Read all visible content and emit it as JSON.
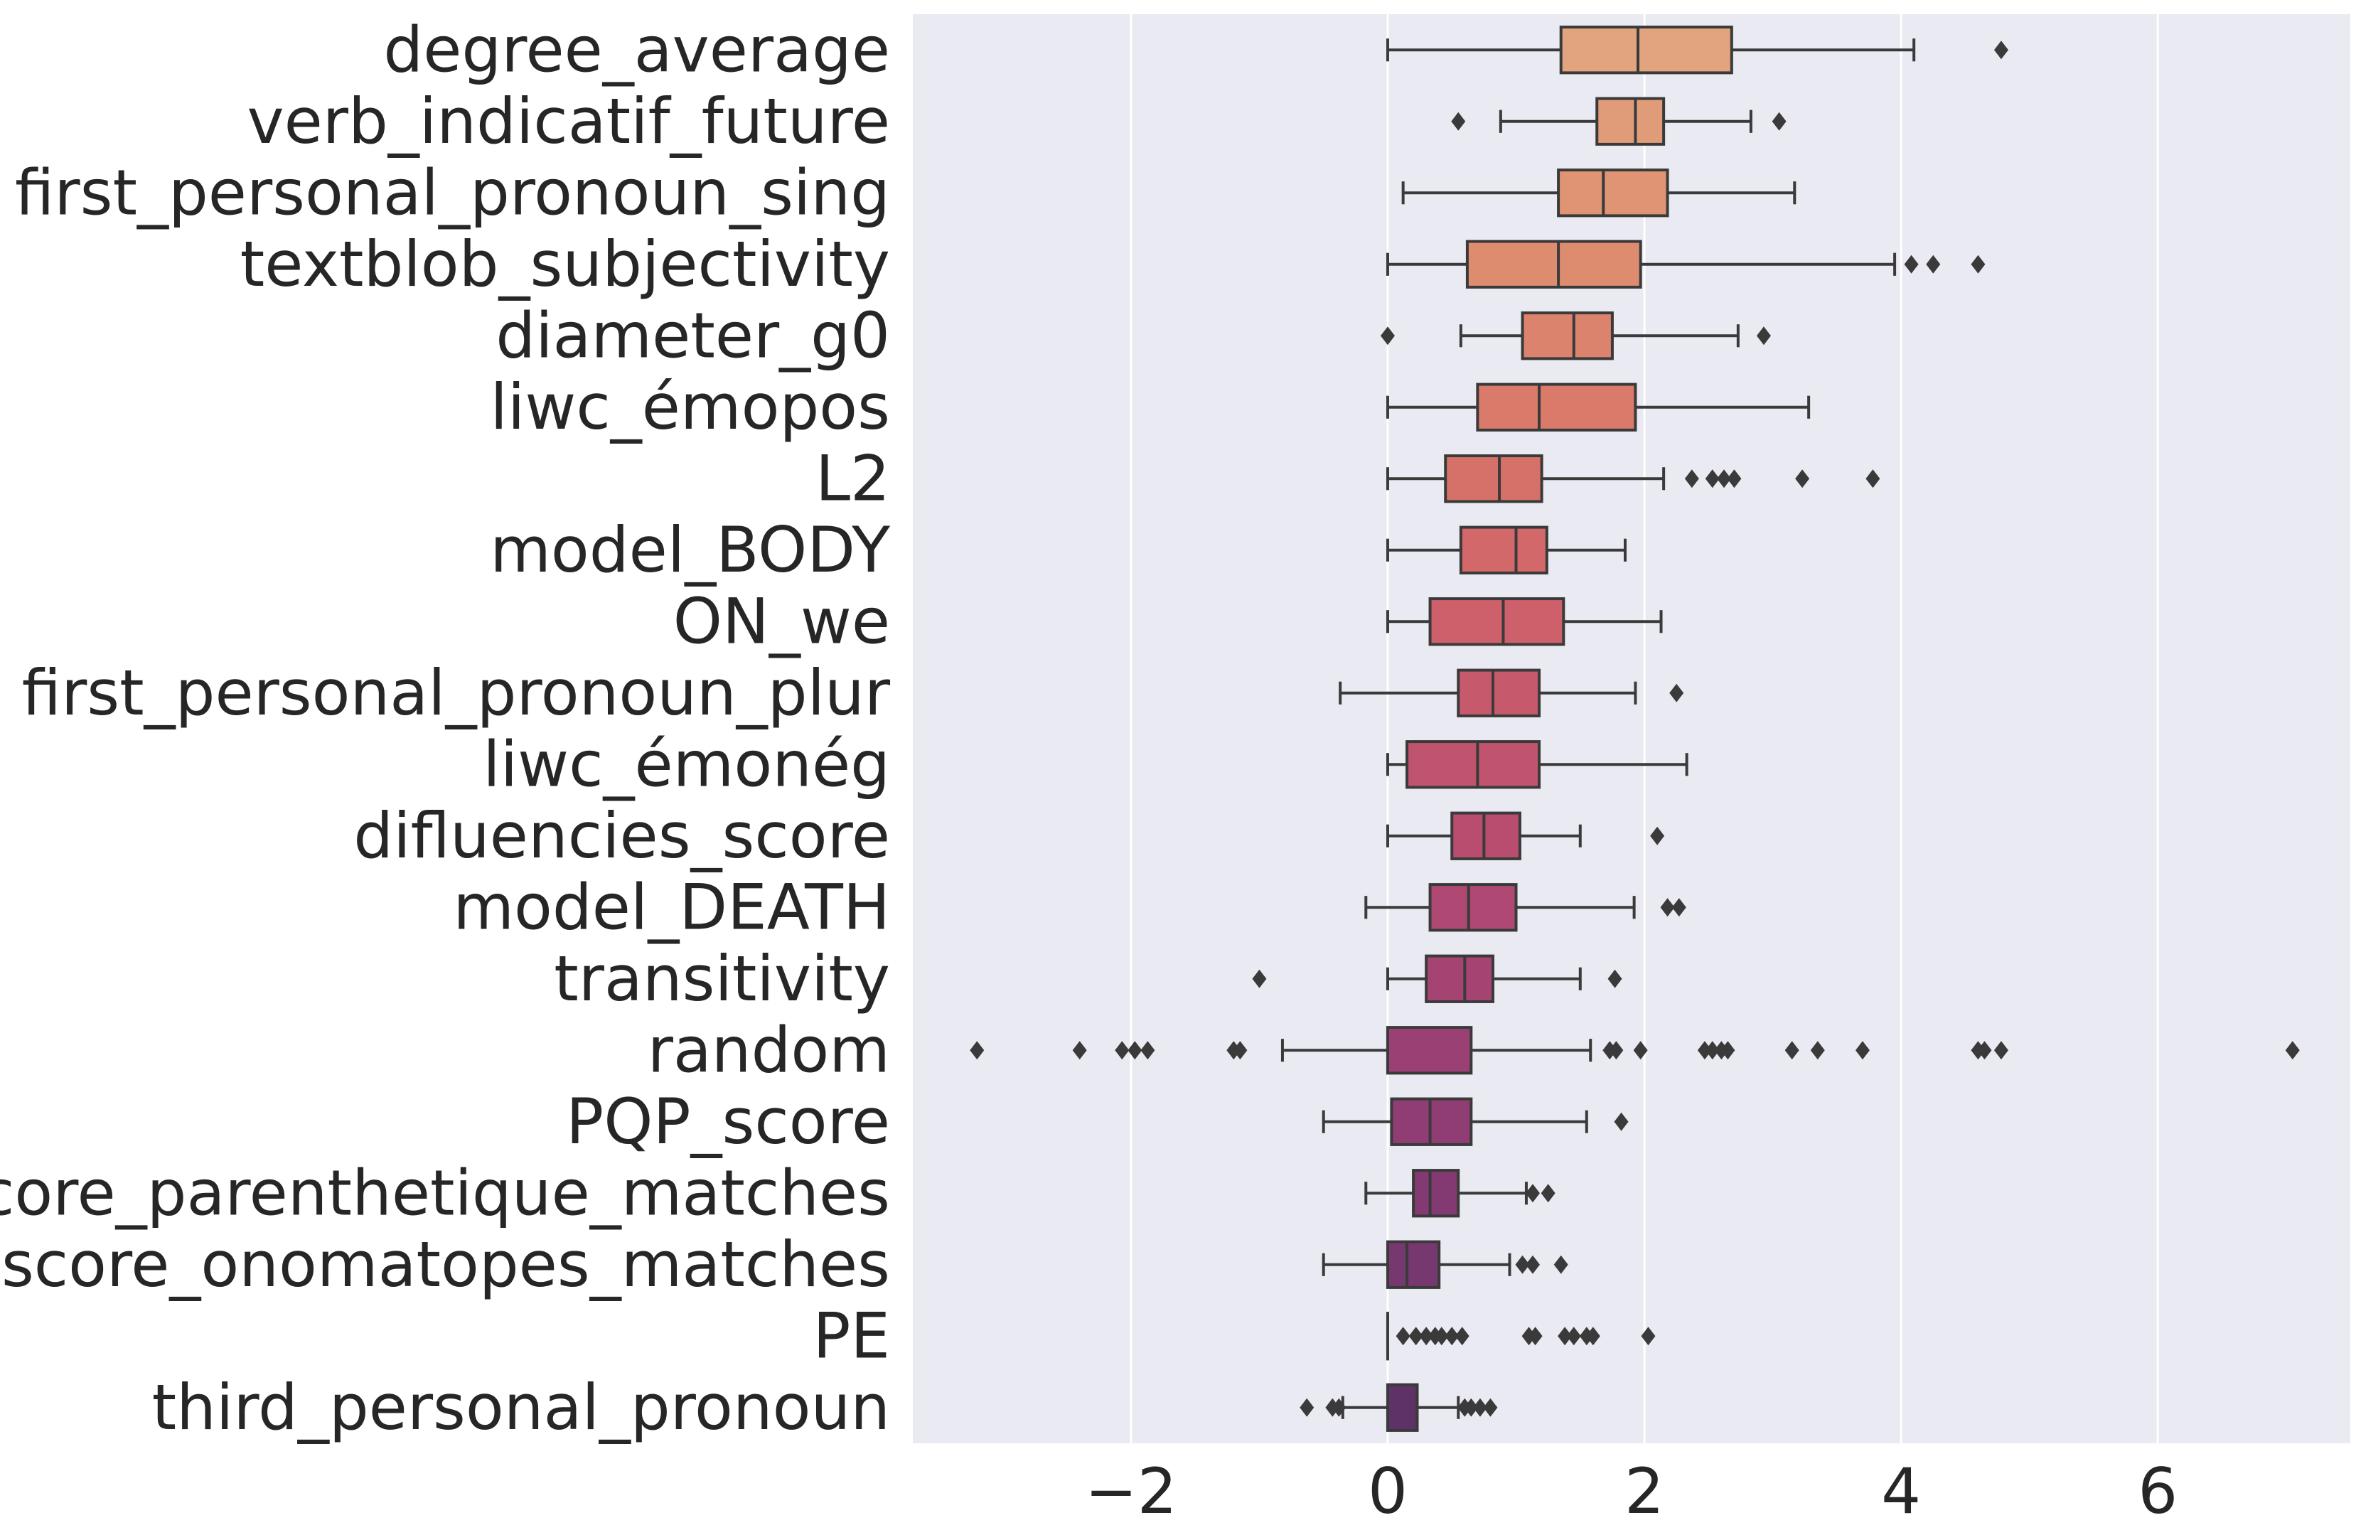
{
  "chart_data": {
    "type": "boxplot",
    "orientation": "horizontal",
    "title": "",
    "xlabel": "",
    "ylabel": "",
    "xlim": [
      -3.7,
      7.5
    ],
    "x_ticks": [
      -2,
      0,
      2,
      4,
      6
    ],
    "x_tick_labels": [
      "−2",
      "0",
      "2",
      "4",
      "6"
    ],
    "grid": "vertical",
    "background_color": "#eaeaf2",
    "palette": "flare",
    "categories": [
      {
        "name": "degree_average",
        "color": "#e1a47e",
        "whislo": 0.0,
        "q1": 1.35,
        "med": 1.95,
        "q3": 2.68,
        "whishi": 4.1,
        "fliers": [
          4.78
        ]
      },
      {
        "name": "verb_indicatif_future",
        "color": "#e09c79",
        "whislo": 0.88,
        "q1": 1.63,
        "med": 1.93,
        "q3": 2.15,
        "whishi": 2.83,
        "fliers": [
          0.55,
          3.05
        ]
      },
      {
        "name": "first_personal_pronoun_sing",
        "color": "#df9474",
        "whislo": 0.12,
        "q1": 1.33,
        "med": 1.68,
        "q3": 2.18,
        "whishi": 3.17,
        "fliers": []
      },
      {
        "name": "textblob_subjectivity",
        "color": "#dd8c70",
        "whislo": 0.0,
        "q1": 0.62,
        "med": 1.33,
        "q3": 1.97,
        "whishi": 3.95,
        "fliers": [
          4.08,
          4.25,
          4.6
        ]
      },
      {
        "name": "diameter_g0",
        "color": "#db836d",
        "whislo": 0.57,
        "q1": 1.05,
        "med": 1.45,
        "q3": 1.75,
        "whishi": 2.73,
        "fliers": [
          0.0,
          2.93
        ]
      },
      {
        "name": "liwc_émopos",
        "color": "#d97a6b",
        "whislo": 0.0,
        "q1": 0.7,
        "med": 1.18,
        "q3": 1.93,
        "whishi": 3.28,
        "fliers": []
      },
      {
        "name": "L2",
        "color": "#d6716a",
        "whislo": 0.0,
        "q1": 0.45,
        "med": 0.87,
        "q3": 1.2,
        "whishi": 2.15,
        "fliers": [
          2.37,
          2.53,
          2.62,
          2.7,
          3.23,
          3.78
        ]
      },
      {
        "name": "model_BODY",
        "color": "#d2686a",
        "whislo": 0.0,
        "q1": 0.57,
        "med": 1.0,
        "q3": 1.24,
        "whishi": 1.85,
        "fliers": []
      },
      {
        "name": "ON_we",
        "color": "#cd606b",
        "whislo": 0.0,
        "q1": 0.33,
        "med": 0.9,
        "q3": 1.37,
        "whishi": 2.13,
        "fliers": []
      },
      {
        "name": "first_personal_pronoun_plur",
        "color": "#c7596c",
        "whislo": -0.37,
        "q1": 0.55,
        "med": 0.82,
        "q3": 1.18,
        "whishi": 1.93,
        "fliers": [
          2.25
        ]
      },
      {
        "name": "liwc_émonég",
        "color": "#c0536e",
        "whislo": 0.0,
        "q1": 0.15,
        "med": 0.7,
        "q3": 1.18,
        "whishi": 2.33,
        "fliers": []
      },
      {
        "name": "difluencies_score",
        "color": "#b84d70",
        "whislo": 0.0,
        "q1": 0.5,
        "med": 0.75,
        "q3": 1.03,
        "whishi": 1.5,
        "fliers": [
          2.1
        ]
      },
      {
        "name": "model_DEATH",
        "color": "#af4872",
        "whislo": -0.17,
        "q1": 0.33,
        "med": 0.63,
        "q3": 1.0,
        "whishi": 1.92,
        "fliers": [
          2.18,
          2.27
        ]
      },
      {
        "name": "transitivity",
        "color": "#a54473",
        "whislo": 0.0,
        "q1": 0.3,
        "med": 0.6,
        "q3": 0.82,
        "whishi": 1.5,
        "fliers": [
          -1.0,
          1.77
        ]
      },
      {
        "name": "random",
        "color": "#9a4074",
        "whislo": -0.82,
        "q1": 0.0,
        "med": 0.0,
        "q3": 0.65,
        "whishi": 1.58,
        "fliers": [
          -3.2,
          -2.4,
          -2.07,
          -1.97,
          -1.87,
          -1.2,
          -1.15,
          1.73,
          1.78,
          1.97,
          2.47,
          2.53,
          2.6,
          2.65,
          3.15,
          3.35,
          3.7,
          4.6,
          4.65,
          4.78,
          7.05
        ]
      },
      {
        "name": "PQP_score",
        "color": "#8f3d73",
        "whislo": -0.5,
        "q1": 0.03,
        "med": 0.33,
        "q3": 0.65,
        "whishi": 1.55,
        "fliers": [
          1.82
        ]
      },
      {
        "name": "score_parenthetique_matches",
        "color": "#833a72",
        "whislo": -0.17,
        "q1": 0.2,
        "med": 0.33,
        "q3": 0.55,
        "whishi": 1.08,
        "fliers": [
          1.13,
          1.25
        ]
      },
      {
        "name": "score_onomatopes_matches",
        "color": "#77376f",
        "whislo": -0.5,
        "q1": 0.0,
        "med": 0.15,
        "q3": 0.4,
        "whishi": 0.95,
        "fliers": [
          1.05,
          1.13,
          1.35
        ]
      },
      {
        "name": "PE",
        "color": "#6b346c",
        "whislo": 0.0,
        "q1": 0.0,
        "med": 0.0,
        "q3": 0.0,
        "whishi": 0.0,
        "fliers": [
          0.12,
          0.22,
          0.3,
          0.37,
          0.42,
          0.5,
          0.58,
          1.1,
          1.15,
          1.38,
          1.45,
          1.55,
          1.6,
          2.03
        ]
      },
      {
        "name": "third_personal_pronoun",
        "color": "#5e3167",
        "whislo": -0.35,
        "q1": 0.0,
        "med": 0.0,
        "q3": 0.23,
        "whishi": 0.55,
        "fliers": [
          -0.63,
          -0.43,
          -0.38,
          0.6,
          0.65,
          0.72,
          0.8
        ]
      }
    ]
  }
}
